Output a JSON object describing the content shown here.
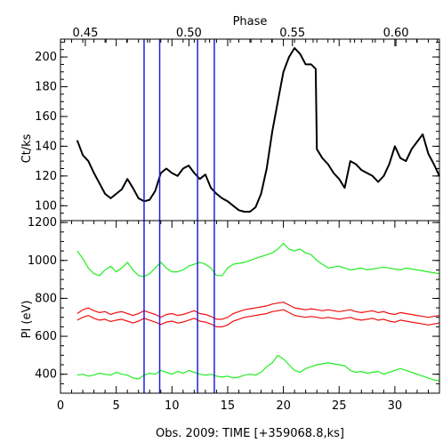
{
  "chart_data": {
    "type": "line",
    "top_axis": {
      "label": "Phase",
      "ticks": [
        "0.45",
        "0.50",
        "0.55",
        "0.60"
      ],
      "tick_values": [
        0.45,
        0.5,
        0.55,
        0.6
      ],
      "range": [
        0.438,
        0.621
      ]
    },
    "x_axis": {
      "label": "Obs. 2009: TIME [+359068.8,ks]",
      "ticks": [
        "0",
        "5",
        "10",
        "15",
        "20",
        "25",
        "30"
      ],
      "tick_values": [
        0,
        5,
        10,
        15,
        20,
        25,
        30
      ],
      "range": [
        0,
        34
      ]
    },
    "vertical_markers": [
      7.5,
      8.9,
      12.3,
      13.8
    ],
    "grid": false,
    "panels": [
      {
        "name": "count-rate",
        "ylabel": "Ct/ks",
        "ylim": [
          90,
          212
        ],
        "yticks": [
          100,
          120,
          140,
          160,
          180,
          200
        ],
        "ytick_labels": [
          "100",
          "120",
          "140",
          "160",
          "180",
          "200"
        ],
        "series": [
          {
            "color": "#000000",
            "x": [
              1.5,
              2.0,
              2.5,
              3.0,
              3.5,
              4.0,
              4.5,
              5.0,
              5.5,
              6.0,
              6.5,
              7.0,
              7.5,
              8.0,
              8.5,
              9.0,
              9.5,
              10.0,
              10.5,
              11.0,
              11.5,
              12.0,
              12.5,
              13.0,
              13.5,
              14.0,
              14.5,
              15.0,
              15.5,
              16.0,
              16.5,
              17.0,
              17.5,
              18.0,
              18.5,
              19.0,
              19.5,
              20.0,
              20.5,
              21.0,
              21.5,
              22.0,
              22.5,
              22.9,
              23.0,
              23.5,
              24.0,
              24.5,
              25.0,
              25.5,
              26.0,
              26.5,
              27.0,
              27.5,
              28.0,
              28.5,
              29.0,
              29.5,
              30.0,
              30.5,
              31.0,
              31.5,
              32.0,
              32.5,
              33.0,
              33.5,
              34.0
            ],
            "y": [
              144,
              134,
              130,
              122,
              115,
              108,
              105,
              108,
              111,
              118,
              112,
              105,
              103,
              104,
              110,
              122,
              125,
              122,
              120,
              125,
              127,
              122,
              118,
              121,
              112,
              108,
              105,
              103,
              100,
              97,
              96,
              96,
              99,
              108,
              125,
              150,
              170,
              190,
              200,
              206,
              202,
              195,
              195,
              192,
              138,
              132,
              128,
              122,
              118,
              112,
              130,
              128,
              124,
              122,
              120,
              116,
              120,
              128,
              140,
              132,
              130,
              138,
              143,
              148,
              135,
              128,
              120
            ]
          }
        ]
      },
      {
        "name": "pulse-invariant",
        "ylabel": "PI (eV)",
        "ylim": [
          300,
          1210
        ],
        "yticks": [
          400,
          600,
          800,
          1000,
          1200
        ],
        "ytick_labels": [
          "400",
          "600",
          "800",
          "1000",
          "1200"
        ],
        "series": [
          {
            "color": "#22ee22",
            "x": [
              1.5,
              2.0,
              2.5,
              3.0,
              3.5,
              4.0,
              4.5,
              5.0,
              5.5,
              6.0,
              6.5,
              7.0,
              7.5,
              8.0,
              8.5,
              9.0,
              9.5,
              10.0,
              10.5,
              11.0,
              11.5,
              12.0,
              12.5,
              13.0,
              13.5,
              14.0,
              14.5,
              15.0,
              15.5,
              16.0,
              16.5,
              17.0,
              17.5,
              18.0,
              18.5,
              19.0,
              19.5,
              20.0,
              20.5,
              21.0,
              21.5,
              22.0,
              22.5,
              23.0,
              23.5,
              24.0,
              24.5,
              25.0,
              25.5,
              26.0,
              26.5,
              27.0,
              27.5,
              28.0,
              28.5,
              29.0,
              29.5,
              30.0,
              30.5,
              31.0,
              31.5,
              32.0,
              32.5,
              33.0,
              33.5,
              34.0
            ],
            "y": [
              1050,
              1010,
              960,
              930,
              920,
              950,
              970,
              940,
              960,
              990,
              950,
              920,
              915,
              930,
              960,
              990,
              960,
              940,
              940,
              950,
              970,
              980,
              990,
              980,
              960,
              920,
              920,
              960,
              980,
              985,
              990,
              1000,
              1010,
              1020,
              1030,
              1040,
              1060,
              1090,
              1060,
              1050,
              1060,
              1040,
              1030,
              1000,
              980,
              960,
              965,
              970,
              960,
              950,
              955,
              960,
              950,
              955,
              960,
              965,
              960,
              955,
              950,
              960,
              955,
              950,
              945,
              940,
              935,
              930
            ]
          },
          {
            "color": "#ee1111",
            "x": [
              1.5,
              2.0,
              2.5,
              3.0,
              3.5,
              4.0,
              4.5,
              5.0,
              5.5,
              6.0,
              6.5,
              7.0,
              7.5,
              8.0,
              8.5,
              9.0,
              9.5,
              10.0,
              10.5,
              11.0,
              11.5,
              12.0,
              12.5,
              13.0,
              13.5,
              14.0,
              14.5,
              15.0,
              15.5,
              16.0,
              16.5,
              17.0,
              17.5,
              18.0,
              18.5,
              19.0,
              19.5,
              20.0,
              20.5,
              21.0,
              21.5,
              22.0,
              22.5,
              23.0,
              23.5,
              24.0,
              24.5,
              25.0,
              25.5,
              26.0,
              26.5,
              27.0,
              27.5,
              28.0,
              28.5,
              29.0,
              29.5,
              30.0,
              30.5,
              31.0,
              31.5,
              32.0,
              32.5,
              33.0,
              33.5,
              34.0
            ],
            "y": [
              720,
              740,
              750,
              735,
              725,
              730,
              715,
              725,
              730,
              720,
              710,
              720,
              735,
              725,
              715,
              700,
              715,
              720,
              710,
              715,
              725,
              735,
              720,
              715,
              705,
              690,
              690,
              700,
              720,
              730,
              740,
              745,
              750,
              755,
              760,
              770,
              775,
              780,
              765,
              750,
              745,
              740,
              745,
              740,
              735,
              740,
              735,
              730,
              735,
              740,
              730,
              725,
              730,
              735,
              725,
              730,
              720,
              715,
              725,
              720,
              715,
              710,
              705,
              700,
              705,
              710
            ]
          },
          {
            "color": "#ee1111",
            "x": [
              1.5,
              2.0,
              2.5,
              3.0,
              3.5,
              4.0,
              4.5,
              5.0,
              5.5,
              6.0,
              6.5,
              7.0,
              7.5,
              8.0,
              8.5,
              9.0,
              9.5,
              10.0,
              10.5,
              11.0,
              11.5,
              12.0,
              12.5,
              13.0,
              13.5,
              14.0,
              14.5,
              15.0,
              15.5,
              16.0,
              16.5,
              17.0,
              17.5,
              18.0,
              18.5,
              19.0,
              19.5,
              20.0,
              20.5,
              21.0,
              21.5,
              22.0,
              22.5,
              23.0,
              23.5,
              24.0,
              24.5,
              25.0,
              25.5,
              26.0,
              26.5,
              27.0,
              27.5,
              28.0,
              28.5,
              29.0,
              29.5,
              30.0,
              30.5,
              31.0,
              31.5,
              32.0,
              32.5,
              33.0,
              33.5,
              34.0
            ],
            "y": [
              685,
              700,
              710,
              695,
              685,
              690,
              678,
              685,
              690,
              680,
              670,
              680,
              695,
              685,
              675,
              662,
              675,
              680,
              670,
              675,
              685,
              695,
              680,
              675,
              665,
              650,
              650,
              660,
              680,
              690,
              700,
              705,
              710,
              715,
              720,
              730,
              735,
              740,
              725,
              710,
              705,
              700,
              705,
              700,
              695,
              700,
              695,
              690,
              695,
              700,
              690,
              685,
              690,
              695,
              685,
              690,
              680,
              675,
              685,
              680,
              675,
              670,
              665,
              660,
              665,
              670
            ]
          },
          {
            "color": "#22ee22",
            "x": [
              1.5,
              2.0,
              2.5,
              3.0,
              3.5,
              4.0,
              4.5,
              5.0,
              5.5,
              6.0,
              6.5,
              7.0,
              7.5,
              8.0,
              8.5,
              9.0,
              9.5,
              10.0,
              10.5,
              11.0,
              11.5,
              12.0,
              12.5,
              13.0,
              13.5,
              14.0,
              14.5,
              15.0,
              15.5,
              16.0,
              16.5,
              17.0,
              17.5,
              18.0,
              18.5,
              19.0,
              19.5,
              20.0,
              20.5,
              21.0,
              21.5,
              22.0,
              22.5,
              23.0,
              23.5,
              24.0,
              24.5,
              25.0,
              25.5,
              26.0,
              26.5,
              27.0,
              27.5,
              28.0,
              28.5,
              29.0,
              29.5,
              30.0,
              30.5,
              31.0,
              31.5,
              32.0,
              32.5,
              33.0,
              33.5,
              34.0
            ],
            "y": [
              395,
              400,
              390,
              395,
              405,
              400,
              395,
              410,
              400,
              395,
              380,
              375,
              395,
              405,
              400,
              420,
              410,
              400,
              415,
              405,
              420,
              410,
              400,
              395,
              400,
              390,
              385,
              390,
              380,
              385,
              395,
              400,
              395,
              410,
              440,
              460,
              500,
              480,
              450,
              420,
              410,
              430,
              440,
              450,
              455,
              460,
              455,
              450,
              445,
              420,
              410,
              415,
              405,
              410,
              415,
              400,
              410,
              420,
              430,
              420,
              410,
              400,
              390,
              380,
              370,
              365
            ]
          }
        ]
      }
    ]
  }
}
